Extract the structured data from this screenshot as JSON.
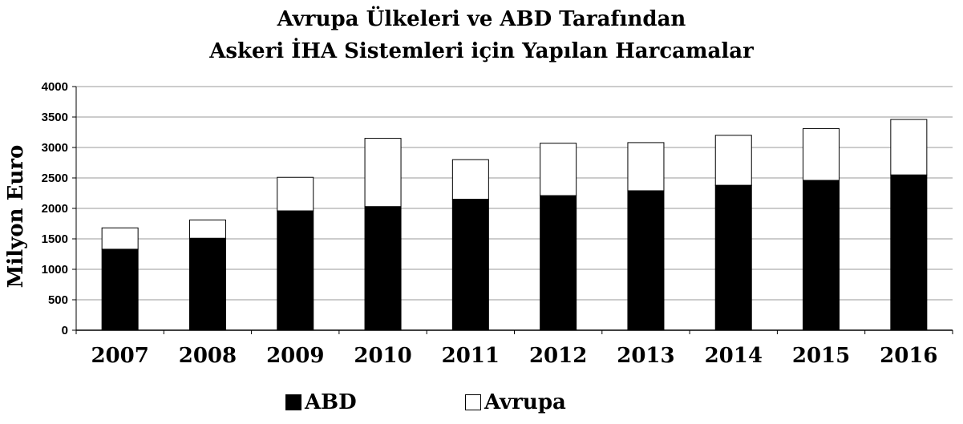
{
  "chart_data": {
    "type": "bar",
    "stacked": true,
    "title_lines": [
      "Avrupa Ülkeleri ve ABD Tarafından",
      "Askeri İHA Sistemleri için Yapılan Harcamalar"
    ],
    "ylabel": "Milyon Euro",
    "xlabel": "",
    "ylim": [
      0,
      4000
    ],
    "yticks": [
      0,
      500,
      1000,
      1500,
      2000,
      2500,
      3000,
      3500,
      4000
    ],
    "grid": true,
    "legend_position": "bottom",
    "categories": [
      "2007",
      "2008",
      "2009",
      "2010",
      "2011",
      "2012",
      "2013",
      "2014",
      "2015",
      "2016"
    ],
    "series": [
      {
        "name": "ABD",
        "color": "#000000",
        "values": [
          1330,
          1510,
          1960,
          2030,
          2150,
          2210,
          2290,
          2380,
          2460,
          2550
        ]
      },
      {
        "name": "Avrupa",
        "color": "#ffffff",
        "values": [
          350,
          300,
          550,
          1120,
          650,
          860,
          790,
          820,
          850,
          910
        ]
      }
    ]
  }
}
